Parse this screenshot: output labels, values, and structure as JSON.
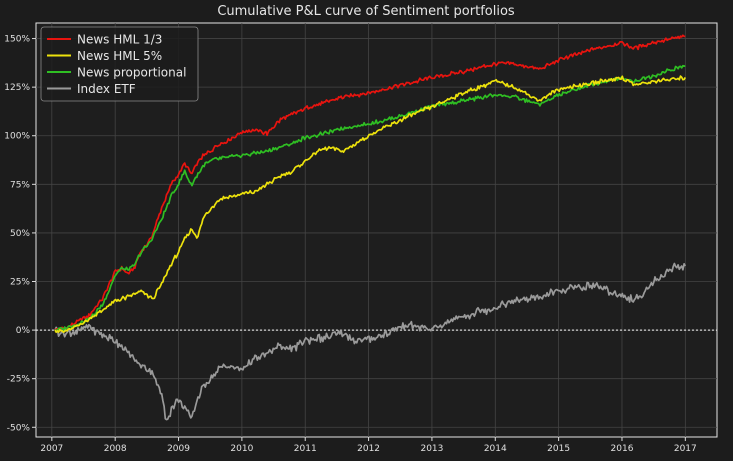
{
  "chart_data": {
    "type": "line",
    "title": "Cumulative P&L curve of Sentiment portfolios",
    "xlabel": "",
    "ylabel": "",
    "xlim": [
      2006.75,
      2017.5
    ],
    "ylim": [
      -55,
      158
    ],
    "x_ticks": [
      2007,
      2008,
      2009,
      2010,
      2011,
      2012,
      2013,
      2014,
      2015,
      2016,
      2017
    ],
    "x_tick_labels": [
      "2007",
      "2008",
      "2009",
      "2010",
      "2011",
      "2012",
      "2013",
      "2014",
      "2015",
      "2016",
      "2017"
    ],
    "y_ticks": [
      -50,
      -25,
      0,
      25,
      50,
      75,
      100,
      125,
      150
    ],
    "y_tick_labels": [
      "-50%",
      "-25%",
      "0%",
      "25%",
      "50%",
      "75%",
      "100%",
      "125%",
      "150%"
    ],
    "grid": true,
    "zero_line": "dotted white",
    "legend_position": "top-left",
    "series": [
      {
        "name": "News HML 1/3",
        "color": "#e8140f",
        "x": [
          2007.05,
          2007.2,
          2007.4,
          2007.6,
          2007.8,
          2008.0,
          2008.1,
          2008.2,
          2008.3,
          2008.4,
          2008.5,
          2008.6,
          2008.7,
          2008.8,
          2008.9,
          2009.0,
          2009.1,
          2009.2,
          2009.3,
          2009.4,
          2009.5,
          2009.6,
          2009.8,
          2010.0,
          2010.2,
          2010.4,
          2010.6,
          2010.8,
          2011.0,
          2011.3,
          2011.6,
          2012.0,
          2012.5,
          2013.0,
          2013.5,
          2014.0,
          2014.3,
          2014.7,
          2015.0,
          2015.5,
          2016.0,
          2016.2,
          2016.5,
          2016.8,
          2017.0
        ],
        "values": [
          0,
          1,
          4,
          8,
          16,
          30,
          32,
          29,
          32,
          40,
          44,
          50,
          60,
          68,
          76,
          80,
          86,
          80,
          86,
          90,
          92,
          95,
          98,
          102,
          103,
          101,
          108,
          111,
          114,
          117,
          120,
          122,
          126,
          130,
          133,
          137,
          137,
          134,
          139,
          144,
          148,
          145,
          148,
          150,
          151
        ]
      },
      {
        "name": "News HML 5%",
        "color": "#ede20c",
        "x": [
          2007.05,
          2007.2,
          2007.4,
          2007.6,
          2007.8,
          2008.0,
          2008.2,
          2008.4,
          2008.6,
          2008.7,
          2008.8,
          2008.9,
          2009.0,
          2009.1,
          2009.2,
          2009.3,
          2009.4,
          2009.5,
          2009.6,
          2009.7,
          2009.9,
          2010.0,
          2010.2,
          2010.4,
          2010.6,
          2010.8,
          2011.0,
          2011.2,
          2011.4,
          2011.6,
          2011.8,
          2012.0,
          2012.5,
          2013.0,
          2013.5,
          2014.0,
          2014.3,
          2014.7,
          2015.0,
          2015.5,
          2016.0,
          2016.2,
          2016.5,
          2016.8,
          2017.0
        ],
        "values": [
          0,
          -1,
          2,
          6,
          10,
          15,
          17,
          20,
          16,
          22,
          28,
          35,
          40,
          47,
          52,
          48,
          58,
          62,
          66,
          68,
          69,
          70,
          71,
          75,
          79,
          82,
          87,
          92,
          94,
          92,
          96,
          100,
          108,
          115,
          122,
          128,
          125,
          118,
          124,
          127,
          130,
          126,
          128,
          129,
          130
        ]
      },
      {
        "name": "News proportional",
        "color": "#2fbf23",
        "x": [
          2007.05,
          2007.2,
          2007.4,
          2007.6,
          2007.8,
          2008.0,
          2008.1,
          2008.2,
          2008.3,
          2008.4,
          2008.5,
          2008.6,
          2008.7,
          2008.8,
          2008.9,
          2009.0,
          2009.1,
          2009.2,
          2009.3,
          2009.4,
          2009.5,
          2009.6,
          2009.8,
          2010.0,
          2010.2,
          2010.4,
          2010.6,
          2010.8,
          2011.0,
          2011.3,
          2011.6,
          2012.0,
          2012.5,
          2013.0,
          2013.5,
          2014.0,
          2014.3,
          2014.7,
          2015.0,
          2015.5,
          2016.0,
          2016.2,
          2016.5,
          2016.8,
          2017.0
        ],
        "values": [
          0,
          1,
          3,
          6,
          13,
          28,
          32,
          31,
          33,
          40,
          43,
          48,
          55,
          62,
          70,
          75,
          82,
          74,
          80,
          85,
          87,
          88,
          89,
          90,
          91,
          92,
          94,
          96,
          99,
          101,
          104,
          106,
          110,
          115,
          118,
          121,
          120,
          116,
          121,
          126,
          130,
          128,
          131,
          134,
          136
        ]
      },
      {
        "name": "Index ETF",
        "color": "#9a9a9a",
        "x": [
          2007.05,
          2007.2,
          2007.4,
          2007.6,
          2007.8,
          2008.0,
          2008.2,
          2008.4,
          2008.6,
          2008.75,
          2008.8,
          2008.9,
          2009.0,
          2009.1,
          2009.2,
          2009.3,
          2009.4,
          2009.5,
          2009.7,
          2010.0,
          2010.2,
          2010.4,
          2010.6,
          2010.8,
          2011.0,
          2011.3,
          2011.6,
          2011.8,
          2012.0,
          2012.3,
          2012.6,
          2012.9,
          2013.0,
          2013.3,
          2013.6,
          2014.0,
          2014.3,
          2014.7,
          2015.0,
          2015.3,
          2015.6,
          2015.8,
          2016.0,
          2016.2,
          2016.5,
          2016.8,
          2017.0
        ],
        "values": [
          0,
          -2,
          -1,
          2,
          -3,
          -5,
          -12,
          -18,
          -22,
          -35,
          -47,
          -40,
          -35,
          -40,
          -46,
          -35,
          -28,
          -25,
          -18,
          -20,
          -15,
          -12,
          -8,
          -10,
          -5,
          -4,
          -2,
          -6,
          -5,
          -2,
          3,
          1,
          0,
          5,
          8,
          12,
          15,
          17,
          20,
          22,
          23,
          20,
          18,
          15,
          25,
          32,
          33
        ]
      }
    ]
  }
}
